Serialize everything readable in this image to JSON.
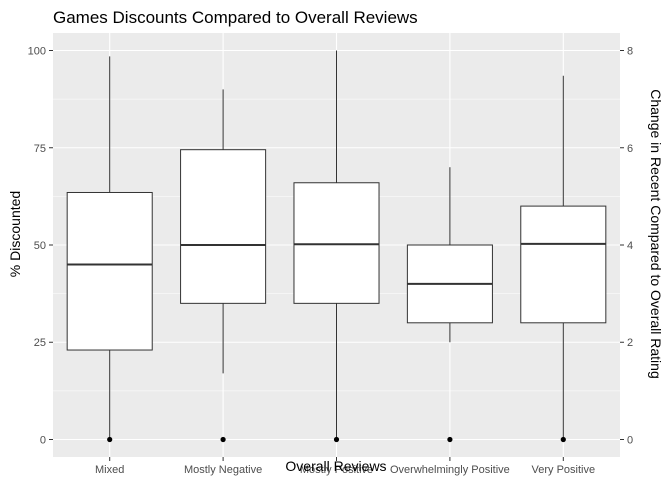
{
  "chart_data": {
    "type": "boxplot",
    "title": "Games Discounts Compared to Overall Reviews",
    "xlabel": "Overall Reviews",
    "ylabel": "% Discounted",
    "y2label": "Change in Recent Compared to Overall Rating",
    "ylim": [
      -4.5,
      104.5
    ],
    "y_ticks": [
      0,
      25,
      50,
      75,
      100
    ],
    "y2lim": [
      -0.36,
      8.36
    ],
    "y2_ticks": [
      0,
      2,
      4,
      6,
      8
    ],
    "grid": true,
    "colors": {
      "panel": "#ebebeb",
      "grid": "#ffffff",
      "box_fill": "#ffffff",
      "box_stroke": "#333333",
      "point": "#000000"
    },
    "categories": [
      "Mixed",
      "Mostly Negative",
      "Mostly Positive",
      "Overwhelmingly Positive",
      "Very Positive"
    ],
    "boxes": [
      {
        "category": "Mixed",
        "whisker_low": 0,
        "q1": 23,
        "median": 45,
        "q3": 63.5,
        "whisker_high": 98.5
      },
      {
        "category": "Mostly Negative",
        "whisker_low": 17,
        "q1": 35,
        "median": 50,
        "q3": 74.5,
        "whisker_high": 90
      },
      {
        "category": "Mostly Positive",
        "whisker_low": 0,
        "q1": 35,
        "median": 50.2,
        "q3": 66,
        "whisker_high": 100
      },
      {
        "category": "Overwhelmingly Positive",
        "whisker_low": 25,
        "q1": 30,
        "median": 40,
        "q3": 50,
        "whisker_high": 70
      },
      {
        "category": "Very Positive",
        "whisker_low": 0,
        "q1": 30,
        "median": 50.3,
        "q3": 60,
        "whisker_high": 93.5
      }
    ],
    "points": [
      {
        "category": "Mixed",
        "y": 0
      },
      {
        "category": "Mostly Negative",
        "y": 0
      },
      {
        "category": "Mostly Positive",
        "y": 0
      },
      {
        "category": "Overwhelmingly Positive",
        "y": 0
      },
      {
        "category": "Very Positive",
        "y": 0
      }
    ]
  }
}
